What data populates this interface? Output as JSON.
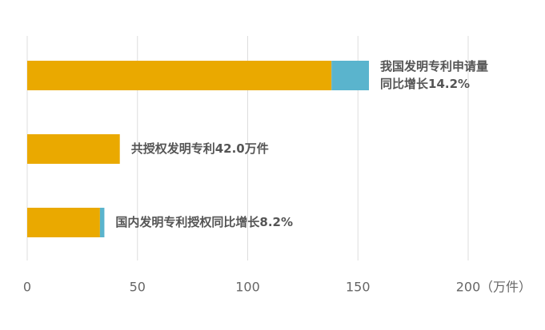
{
  "chart_data": {
    "type": "stacked_barh",
    "series": [
      {
        "color": "#eaa900",
        "values": [
          138,
          42,
          33
        ]
      },
      {
        "color": "#5ab4cd",
        "values": [
          17,
          0,
          2
        ]
      }
    ],
    "annotations": [
      [
        "我国发明专利申请量",
        "同比增长14.2%"
      ],
      [
        "共授权发明专利42.0万件"
      ],
      [
        "国内发明专利授权同比增长8.2%"
      ]
    ],
    "xlim": [
      0,
      200
    ],
    "xticks": [
      0,
      50,
      100,
      150,
      200
    ],
    "x_label": "（万件）",
    "grid": true
  }
}
